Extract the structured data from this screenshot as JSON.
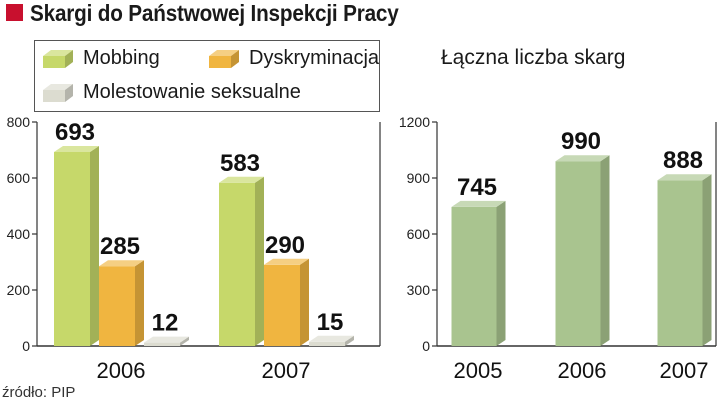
{
  "title": "Skargi do Państwowej Inspekcji Pracy",
  "source": "źródło: PIP",
  "colors": {
    "accent": "#c8102e",
    "mobbing": "#c6d86a",
    "dyskryminacja": "#f0b540",
    "molestowanie": "#dcdcd0",
    "total": "#a9c48f"
  },
  "chart_data": [
    {
      "type": "bar",
      "title": "",
      "categories": [
        "2006",
        "2007"
      ],
      "series": [
        {
          "name": "Mobbing",
          "values": [
            693,
            583
          ]
        },
        {
          "name": "Dyskryminacja",
          "values": [
            285,
            290
          ]
        },
        {
          "name": "Molestowanie seksualne",
          "values": [
            12,
            15
          ]
        }
      ],
      "yticks": [
        0,
        200,
        400,
        600,
        800
      ],
      "ylim": [
        0,
        800
      ],
      "xlabel": "",
      "ylabel": "",
      "grid": false,
      "legend": "top-left"
    },
    {
      "type": "bar",
      "title": "Łączna liczba skarg",
      "categories": [
        "2005",
        "2006",
        "2007"
      ],
      "series": [
        {
          "name": "",
          "values": [
            745,
            990,
            888
          ]
        }
      ],
      "yticks": [
        0,
        300,
        600,
        900,
        1200
      ],
      "ylim": [
        0,
        1200
      ],
      "xlabel": "",
      "ylabel": "",
      "grid": false
    }
  ]
}
